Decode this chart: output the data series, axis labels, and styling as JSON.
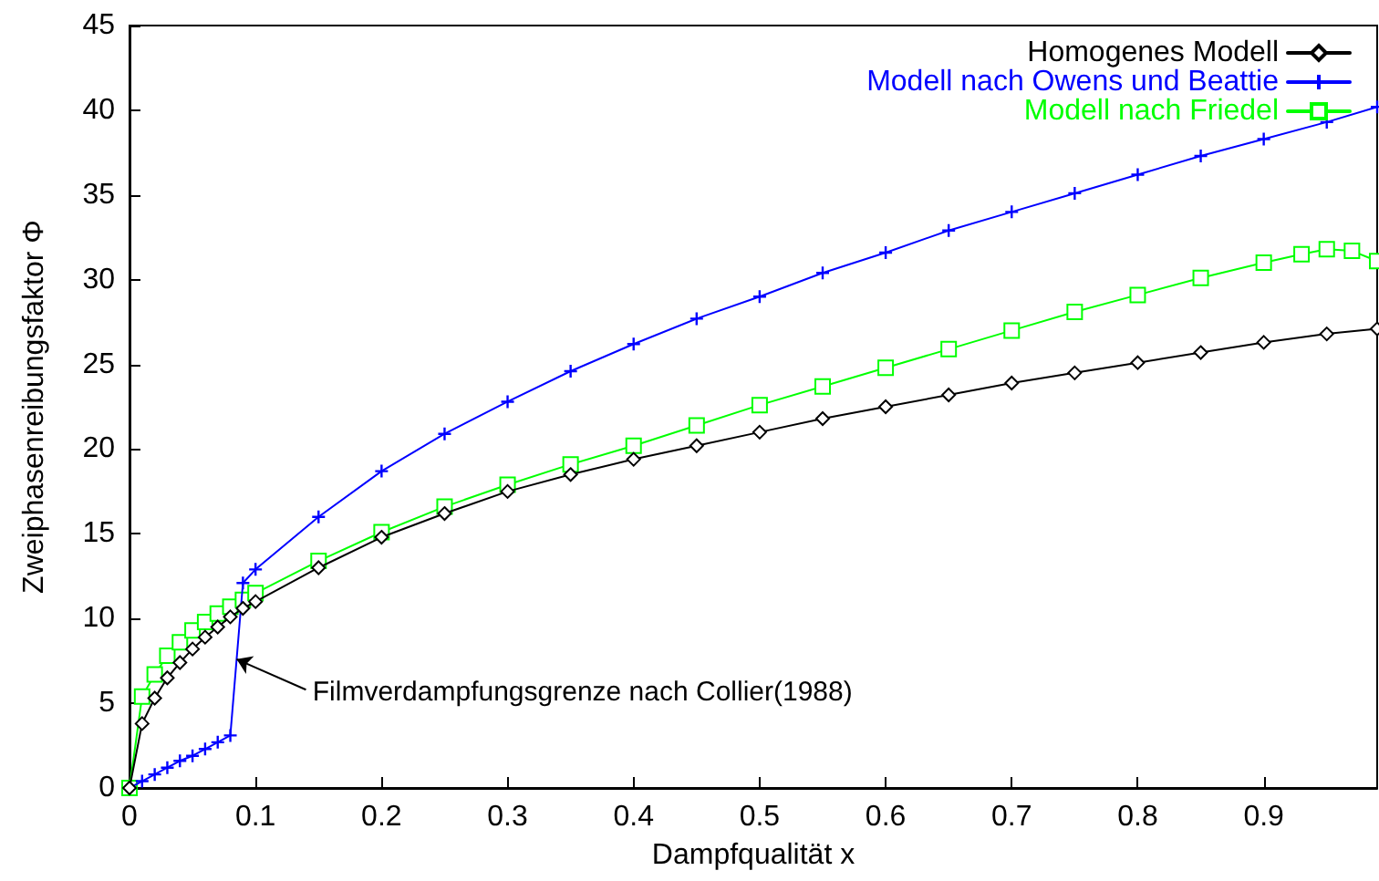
{
  "chart_data": {
    "type": "line",
    "xlabel": "Dampfqualität x",
    "ylabel": "Zweiphasenreibungsfaktor Φ",
    "xlim": [
      0,
      0.99
    ],
    "ylim": [
      0,
      45
    ],
    "xticks": [
      0,
      0.1,
      0.2,
      0.3,
      0.4,
      0.5,
      0.6,
      0.7,
      0.8,
      0.9
    ],
    "yticks": [
      0,
      5,
      10,
      15,
      20,
      25,
      30,
      35,
      40,
      45
    ],
    "grid": false,
    "legend": "top right",
    "line_style": "solid",
    "series": [
      {
        "name": "Homogenes Modell",
        "color": "#000000",
        "marker": "diamond",
        "x": [
          0,
          0.01,
          0.02,
          0.03,
          0.04,
          0.05,
          0.06,
          0.07,
          0.08,
          0.09,
          0.1,
          0.15,
          0.2,
          0.25,
          0.3,
          0.35,
          0.4,
          0.45,
          0.5,
          0.55,
          0.6,
          0.65,
          0.7,
          0.75,
          0.8,
          0.85,
          0.9,
          0.95,
          0.99
        ],
        "values": [
          0,
          3.8,
          5.3,
          6.5,
          7.4,
          8.2,
          8.9,
          9.5,
          10.1,
          10.6,
          11,
          13,
          14.8,
          16.2,
          17.5,
          18.5,
          19.4,
          20.2,
          21,
          21.8,
          22.5,
          23.2,
          23.9,
          24.5,
          25.1,
          25.7,
          26.3,
          26.8,
          27.1
        ]
      },
      {
        "name": "Modell nach Owens und Beattie",
        "color": "#0000ff",
        "marker": "cross",
        "x": [
          0,
          0.01,
          0.02,
          0.03,
          0.04,
          0.05,
          0.06,
          0.07,
          0.08,
          0.09,
          0.1,
          0.15,
          0.2,
          0.25,
          0.3,
          0.35,
          0.4,
          0.45,
          0.5,
          0.55,
          0.6,
          0.65,
          0.7,
          0.75,
          0.8,
          0.85,
          0.9,
          0.95,
          0.99
        ],
        "values": [
          0,
          0.4,
          0.8,
          1.2,
          1.6,
          1.9,
          2.3,
          2.7,
          3.1,
          12.1,
          12.9,
          16,
          18.7,
          20.9,
          22.8,
          24.6,
          26.2,
          27.7,
          29,
          30.4,
          31.6,
          32.9,
          34,
          35.1,
          36.2,
          37.3,
          38.3,
          39.3,
          40.2
        ]
      },
      {
        "name": "Modell nach Friedel",
        "color": "#00ff00",
        "marker": "square",
        "x": [
          0,
          0.01,
          0.02,
          0.03,
          0.04,
          0.05,
          0.06,
          0.07,
          0.08,
          0.09,
          0.1,
          0.15,
          0.2,
          0.25,
          0.3,
          0.35,
          0.4,
          0.45,
          0.5,
          0.55,
          0.6,
          0.65,
          0.7,
          0.75,
          0.8,
          0.85,
          0.9,
          0.93,
          0.95,
          0.97,
          0.99
        ],
        "values": [
          0,
          5.4,
          6.7,
          7.8,
          8.6,
          9.3,
          9.8,
          10.3,
          10.7,
          11.1,
          11.5,
          13.4,
          15.1,
          16.6,
          17.9,
          19.1,
          20.2,
          21.4,
          22.6,
          23.7,
          24.8,
          25.9,
          27,
          28.1,
          29.1,
          30.1,
          31,
          31.5,
          31.8,
          31.7,
          31.1
        ]
      }
    ],
    "annotations": [
      {
        "text": "Filmverdampfungsgrenze nach Collier(1988)",
        "x": 0.085,
        "y": 7.6
      }
    ]
  }
}
